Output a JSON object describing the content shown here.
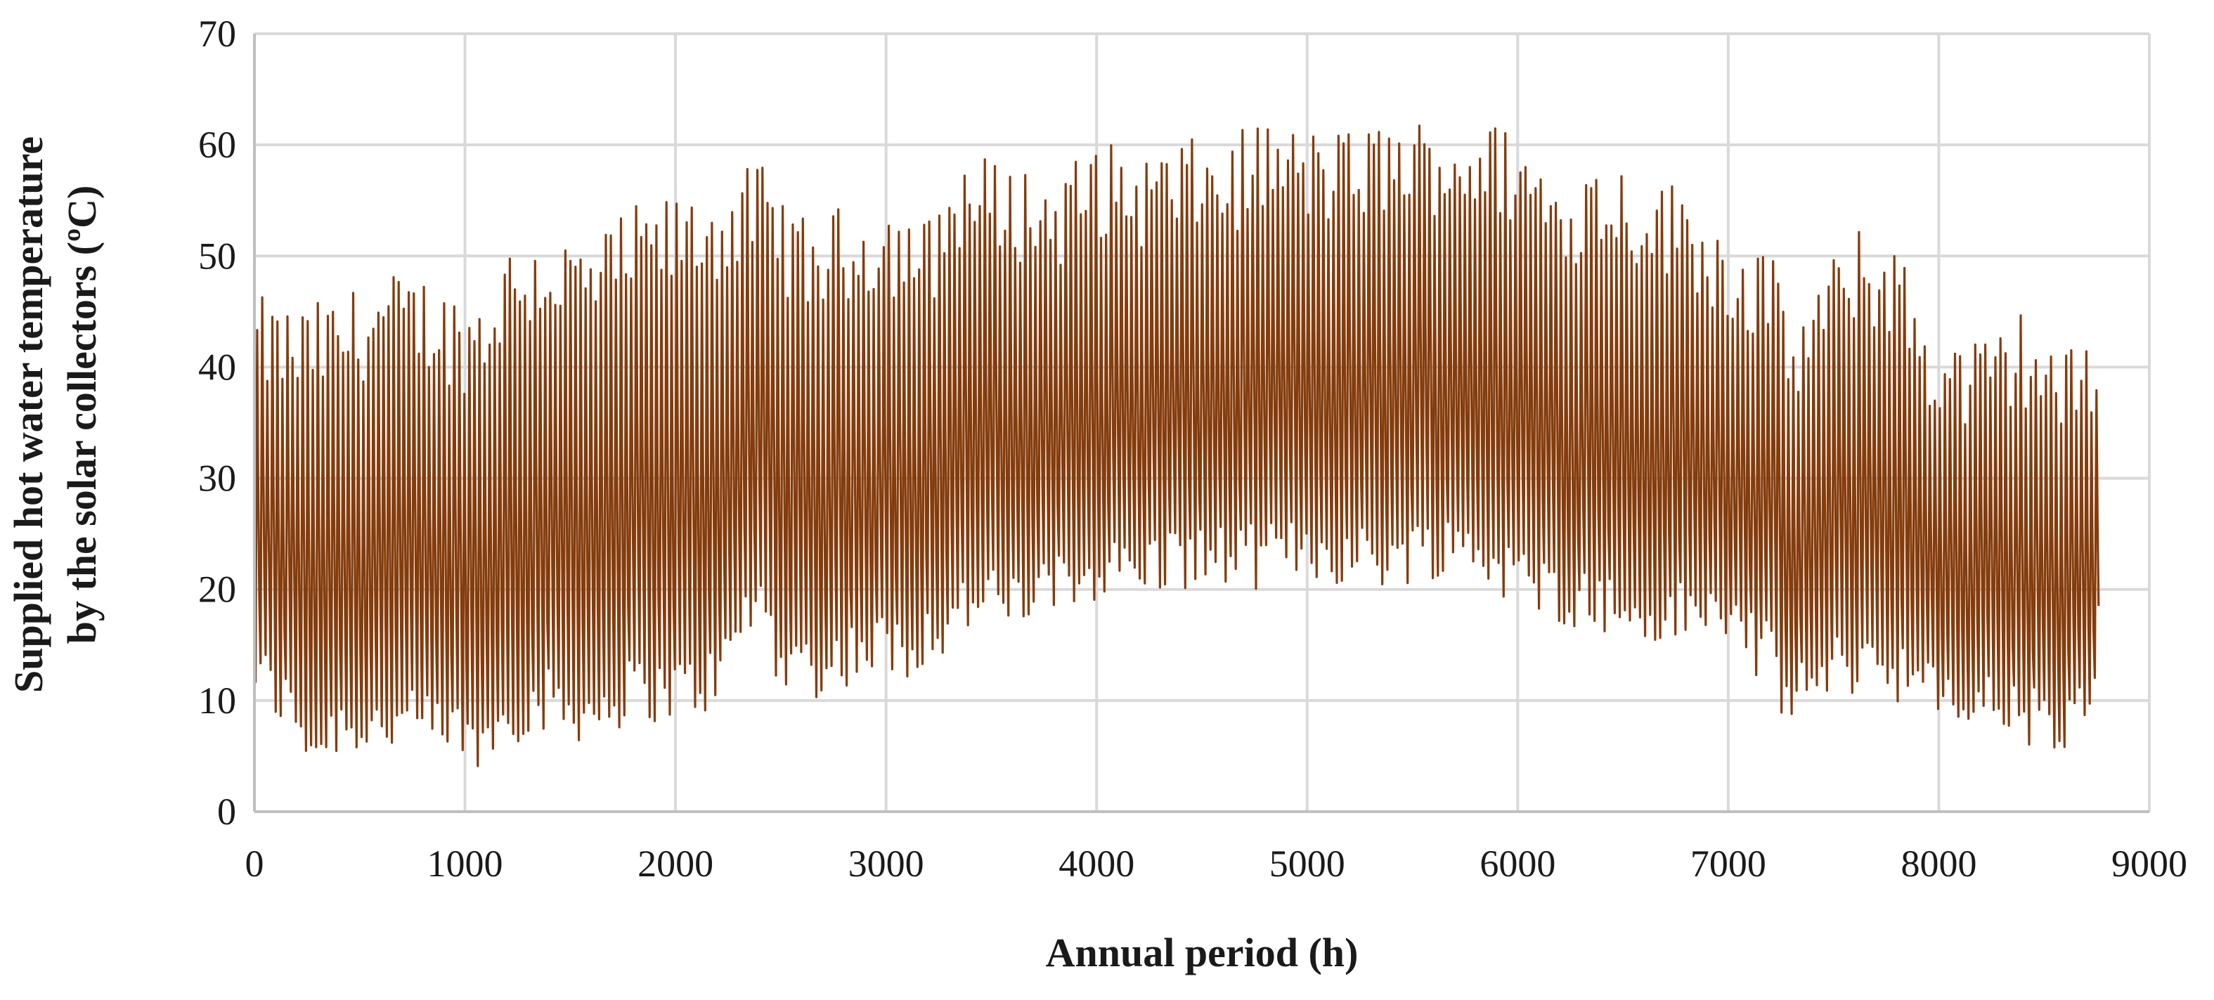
{
  "chart_data": {
    "type": "line",
    "title": "",
    "xlabel": "Annual period (h)",
    "ylabel_line1": "Supplied hot water temperature",
    "ylabel_line2": "by the solar collectors (ºC)",
    "xlim": [
      0,
      9000
    ],
    "ylim": [
      0,
      70
    ],
    "xticks": [
      "0",
      "1000",
      "2000",
      "3000",
      "4000",
      "5000",
      "6000",
      "7000",
      "8000",
      "9000"
    ],
    "yticks": [
      "0",
      "10",
      "20",
      "30",
      "40",
      "50",
      "60",
      "70"
    ],
    "grid": true,
    "legend": "none",
    "series_color": "#843C0C",
    "series": [
      {
        "name": "Supplied hot water temperature",
        "x_start": 0,
        "x_end": 8760,
        "daily_cycle_hours": 24,
        "note": "hourly signal with one peak per day; envelopes below give approximate daily maxima and minima",
        "max_envelope": {
          "x": [
            0,
            200,
            400,
            600,
            800,
            1000,
            1100,
            1200,
            1400,
            1600,
            1800,
            2000,
            2200,
            2400,
            2600,
            2800,
            3000,
            3200,
            3350,
            3600,
            3800,
            4000,
            4200,
            4400,
            4600,
            4800,
            5000,
            5200,
            5400,
            5600,
            5800,
            6000,
            6200,
            6400,
            6600,
            6800,
            7000,
            7200,
            7300,
            7400,
            7600,
            7800,
            7900,
            8000,
            8200,
            8400,
            8600,
            8760
          ],
          "y": [
            42,
            41,
            42,
            44,
            44,
            42,
            43,
            47,
            48,
            47,
            50,
            51,
            52,
            54,
            49,
            50,
            51,
            49,
            55,
            54,
            53,
            56,
            55,
            56,
            56,
            58,
            57,
            57,
            58,
            58,
            58,
            57,
            53,
            55,
            53,
            52,
            48,
            46,
            40,
            43,
            48,
            47,
            42,
            39,
            38,
            41,
            37,
            40
          ]
        },
        "min_envelope": {
          "x": [
            0,
            200,
            300,
            400,
            600,
            800,
            1000,
            1100,
            1200,
            1400,
            1600,
            1800,
            2000,
            2200,
            2400,
            2500,
            2700,
            2900,
            3100,
            3300,
            3400,
            3600,
            3800,
            4000,
            4200,
            4400,
            4600,
            4800,
            5000,
            5200,
            5400,
            5600,
            5800,
            6000,
            6200,
            6400,
            6600,
            6800,
            7000,
            7200,
            7300,
            7500,
            7700,
            7900,
            8000,
            8200,
            8400,
            8600,
            8760
          ],
          "y": [
            13,
            9,
            6,
            8,
            8,
            8,
            7,
            6,
            9,
            10,
            9,
            11,
            11,
            12,
            20,
            14,
            13,
            15,
            15,
            17,
            19,
            19,
            20,
            22,
            22,
            23,
            23,
            23,
            24,
            23,
            23,
            24,
            24,
            21,
            20,
            19,
            17,
            18,
            18,
            14,
            10,
            13,
            14,
            12,
            10,
            10,
            9,
            7,
            11
          ]
        }
      }
    ]
  }
}
